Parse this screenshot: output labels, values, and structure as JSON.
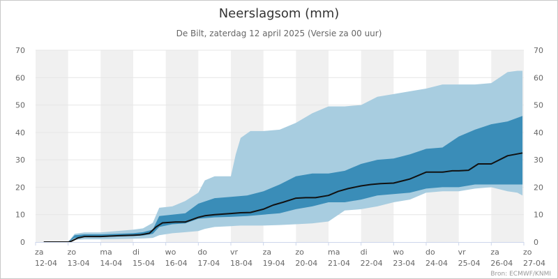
{
  "chart_data": {
    "type": "area",
    "title": "Neerslagsom (mm)",
    "subtitle": "De Bilt, zaterdag 12 april 2025 (Versie za 00 uur)",
    "credit": "Bron: ECMWF/KNMI",
    "xlabel": "",
    "ylabel": "",
    "ylim": [
      0,
      70
    ],
    "y_ticks": [
      0,
      10,
      20,
      30,
      40,
      50,
      60,
      70
    ],
    "grid": true,
    "x_range": [
      0,
      15
    ],
    "day_labels": [
      {
        "day": "za",
        "date": "12-04"
      },
      {
        "day": "zo",
        "date": "13-04"
      },
      {
        "day": "ma",
        "date": "14-04"
      },
      {
        "day": "di",
        "date": "15-04"
      },
      {
        "day": "wo",
        "date": "16-04"
      },
      {
        "day": "do",
        "date": "17-04"
      },
      {
        "day": "vr",
        "date": "18-04"
      },
      {
        "day": "za",
        "date": "19-04"
      },
      {
        "day": "zo",
        "date": "20-04"
      },
      {
        "day": "ma",
        "date": "21-04"
      },
      {
        "day": "di",
        "date": "22-04"
      },
      {
        "day": "wo",
        "date": "23-04"
      },
      {
        "day": "do",
        "date": "24-04"
      },
      {
        "day": "vr",
        "date": "25-04"
      },
      {
        "day": "za",
        "date": "26-04"
      },
      {
        "day": "zo",
        "date": "27-04"
      }
    ],
    "shaded_days": [
      0,
      2,
      4,
      6,
      8,
      10,
      12,
      14
    ],
    "colors": {
      "outer_band": "#a8cde0",
      "inner_band": "#3a8db8",
      "median_line": "#111111",
      "day_shade": "#f0f0f0",
      "grid": "#e6e6e6"
    },
    "series": [
      {
        "name": "outer_band",
        "x": [
          0.25,
          1.0,
          1.2,
          1.5,
          2.0,
          2.5,
          3.0,
          3.3,
          3.6,
          3.8,
          4.2,
          4.6,
          5.0,
          5.2,
          5.5,
          6.0,
          6.15,
          6.3,
          6.6,
          7.0,
          7.5,
          8.0,
          8.5,
          9.0,
          9.5,
          10.0,
          10.5,
          11.0,
          11.5,
          12.0,
          12.5,
          13.0,
          13.5,
          14.0,
          14.5,
          14.8,
          14.96
        ],
        "low": [
          0,
          0,
          0.8,
          1.0,
          1.0,
          1.1,
          1.2,
          1.3,
          1.5,
          2.5,
          3.2,
          3.6,
          4.0,
          4.8,
          5.5,
          5.8,
          5.9,
          6.0,
          6.0,
          6.0,
          6.2,
          6.5,
          6.8,
          7.5,
          11.5,
          12.0,
          13.0,
          14.5,
          15.5,
          18.0,
          18.5,
          18.5,
          19.5,
          20.0,
          18.5,
          18.0,
          17.0
        ],
        "high": [
          0,
          0,
          3.0,
          3.5,
          3.5,
          4.0,
          4.5,
          5.0,
          7.0,
          12.5,
          13.0,
          15.0,
          18.0,
          22.5,
          24.0,
          24.0,
          32.0,
          38.0,
          40.5,
          40.5,
          41.0,
          43.5,
          47.0,
          49.5,
          49.5,
          50.0,
          53.0,
          54.0,
          55.0,
          56.0,
          57.5,
          57.5,
          57.5,
          58.0,
          62.0,
          62.5,
          62.5
        ]
      },
      {
        "name": "inner_band",
        "x": [
          0.25,
          1.0,
          1.2,
          1.5,
          2.0,
          2.5,
          3.0,
          3.3,
          3.6,
          3.8,
          4.2,
          4.6,
          5.0,
          5.5,
          6.0,
          6.5,
          7.0,
          7.5,
          8.0,
          8.5,
          9.0,
          9.5,
          10.0,
          10.5,
          11.0,
          11.5,
          12.0,
          12.5,
          13.0,
          13.5,
          14.0,
          14.5,
          14.96
        ],
        "low": [
          0,
          0,
          1.5,
          1.8,
          1.8,
          2.0,
          2.2,
          2.4,
          3.0,
          5.5,
          6.5,
          6.8,
          8.5,
          9.0,
          9.2,
          9.5,
          10.0,
          10.5,
          12.0,
          13.0,
          14.5,
          14.5,
          15.5,
          17.0,
          17.5,
          18.0,
          19.5,
          20.0,
          20.0,
          21.0,
          21.0,
          21.0,
          21.0
        ],
        "high": [
          0,
          0,
          2.5,
          2.8,
          2.8,
          3.0,
          3.2,
          3.6,
          4.5,
          9.5,
          10.0,
          10.5,
          14.0,
          16.0,
          16.5,
          17.0,
          18.5,
          21.0,
          24.0,
          25.0,
          25.0,
          26.0,
          28.5,
          30.0,
          30.5,
          32.0,
          34.0,
          34.5,
          38.5,
          41.0,
          43.0,
          44.0,
          46.0
        ]
      },
      {
        "name": "median",
        "x": [
          0.25,
          1.0,
          1.1,
          1.3,
          1.5,
          2.0,
          2.5,
          3.0,
          3.2,
          3.5,
          3.7,
          3.9,
          4.3,
          4.6,
          5.0,
          5.2,
          5.5,
          6.0,
          6.3,
          6.6,
          7.0,
          7.3,
          7.6,
          8.0,
          8.3,
          8.6,
          9.0,
          9.3,
          9.6,
          10.0,
          10.3,
          10.6,
          11.0,
          11.5,
          12.0,
          12.5,
          12.8,
          13.0,
          13.3,
          13.6,
          14.0,
          14.5,
          14.96
        ],
        "values": [
          0,
          0,
          0.3,
          1.5,
          2.0,
          2.0,
          2.3,
          2.5,
          2.6,
          3.2,
          5.5,
          7.0,
          7.3,
          7.3,
          9.0,
          9.6,
          10.0,
          10.4,
          10.7,
          10.8,
          12.0,
          13.5,
          14.5,
          16.0,
          16.2,
          16.2,
          17.0,
          18.5,
          19.5,
          20.5,
          21.0,
          21.3,
          21.5,
          23.0,
          25.5,
          25.5,
          26.0,
          26.0,
          26.2,
          28.5,
          28.5,
          31.5,
          32.5
        ]
      }
    ]
  }
}
